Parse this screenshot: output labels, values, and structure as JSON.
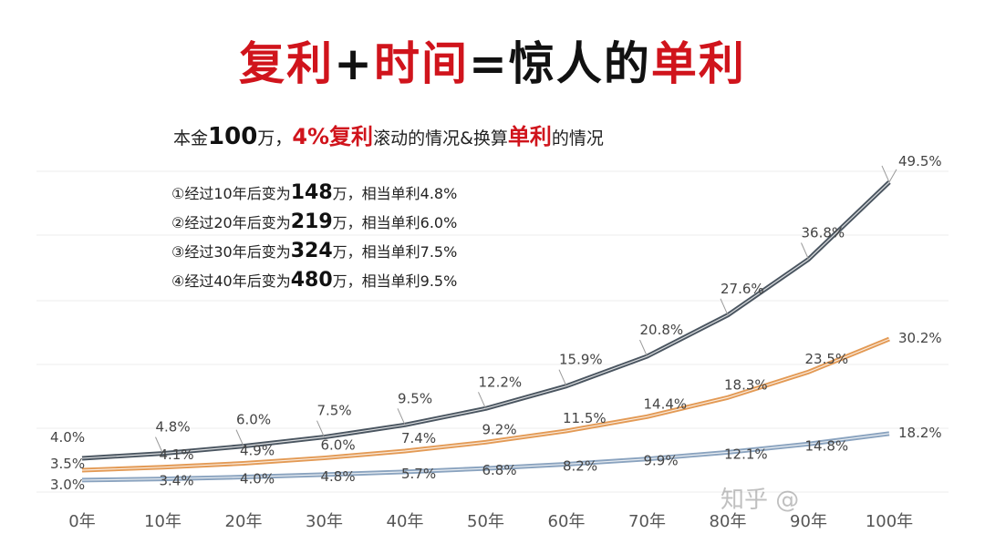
{
  "chart_data": {
    "type": "line",
    "title_parts": [
      {
        "text": "复利",
        "color": "#d0141c"
      },
      {
        "text": "+",
        "color": "#111111"
      },
      {
        "text": "时间",
        "color": "#d0141c"
      },
      {
        "text": "=",
        "color": "#111111"
      },
      {
        "text": "惊人的",
        "color": "#111111"
      },
      {
        "text": "单利",
        "color": "#d0141c"
      }
    ],
    "subtitle": {
      "p1": "本金",
      "p2": "100",
      "p3": "万，",
      "p4": "4%复利",
      "p5": "滚动的情况&换算",
      "p6": "单利",
      "p7": "的情况"
    },
    "notes": [
      {
        "a": "①经过10年后变为",
        "b": "148",
        "c": "万，相当单利4.8%"
      },
      {
        "a": "②经过20年后变为",
        "b": "219",
        "c": "万，相当单利6.0%"
      },
      {
        "a": "③经过30年后变为",
        "b": "324",
        "c": "万，相当单利7.5%"
      },
      {
        "a": "④经过40年后变为",
        "b": "480",
        "c": "万，相当单利9.5%"
      }
    ],
    "categories": [
      "0年",
      "10年",
      "20年",
      "30年",
      "40年",
      "50年",
      "60年",
      "70年",
      "80年",
      "90年",
      "100年"
    ],
    "series": [
      {
        "values": [
          4.0,
          4.8,
          6.0,
          7.5,
          9.5,
          12.2,
          15.9,
          20.8,
          27.6,
          36.8,
          49.5
        ],
        "color": "#4a5560"
      },
      {
        "values": [
          3.5,
          4.1,
          4.9,
          6.0,
          7.4,
          9.2,
          11.5,
          14.4,
          18.3,
          23.5,
          30.2
        ],
        "color": "#e39a55"
      },
      {
        "values": [
          3.0,
          3.4,
          4.0,
          4.8,
          5.7,
          6.8,
          8.2,
          9.9,
          12.1,
          14.8,
          18.2
        ],
        "color": "#8aa3bf"
      }
    ],
    "value_format": "%",
    "grid": true,
    "legend": "none"
  },
  "watermark": "知乎 @"
}
